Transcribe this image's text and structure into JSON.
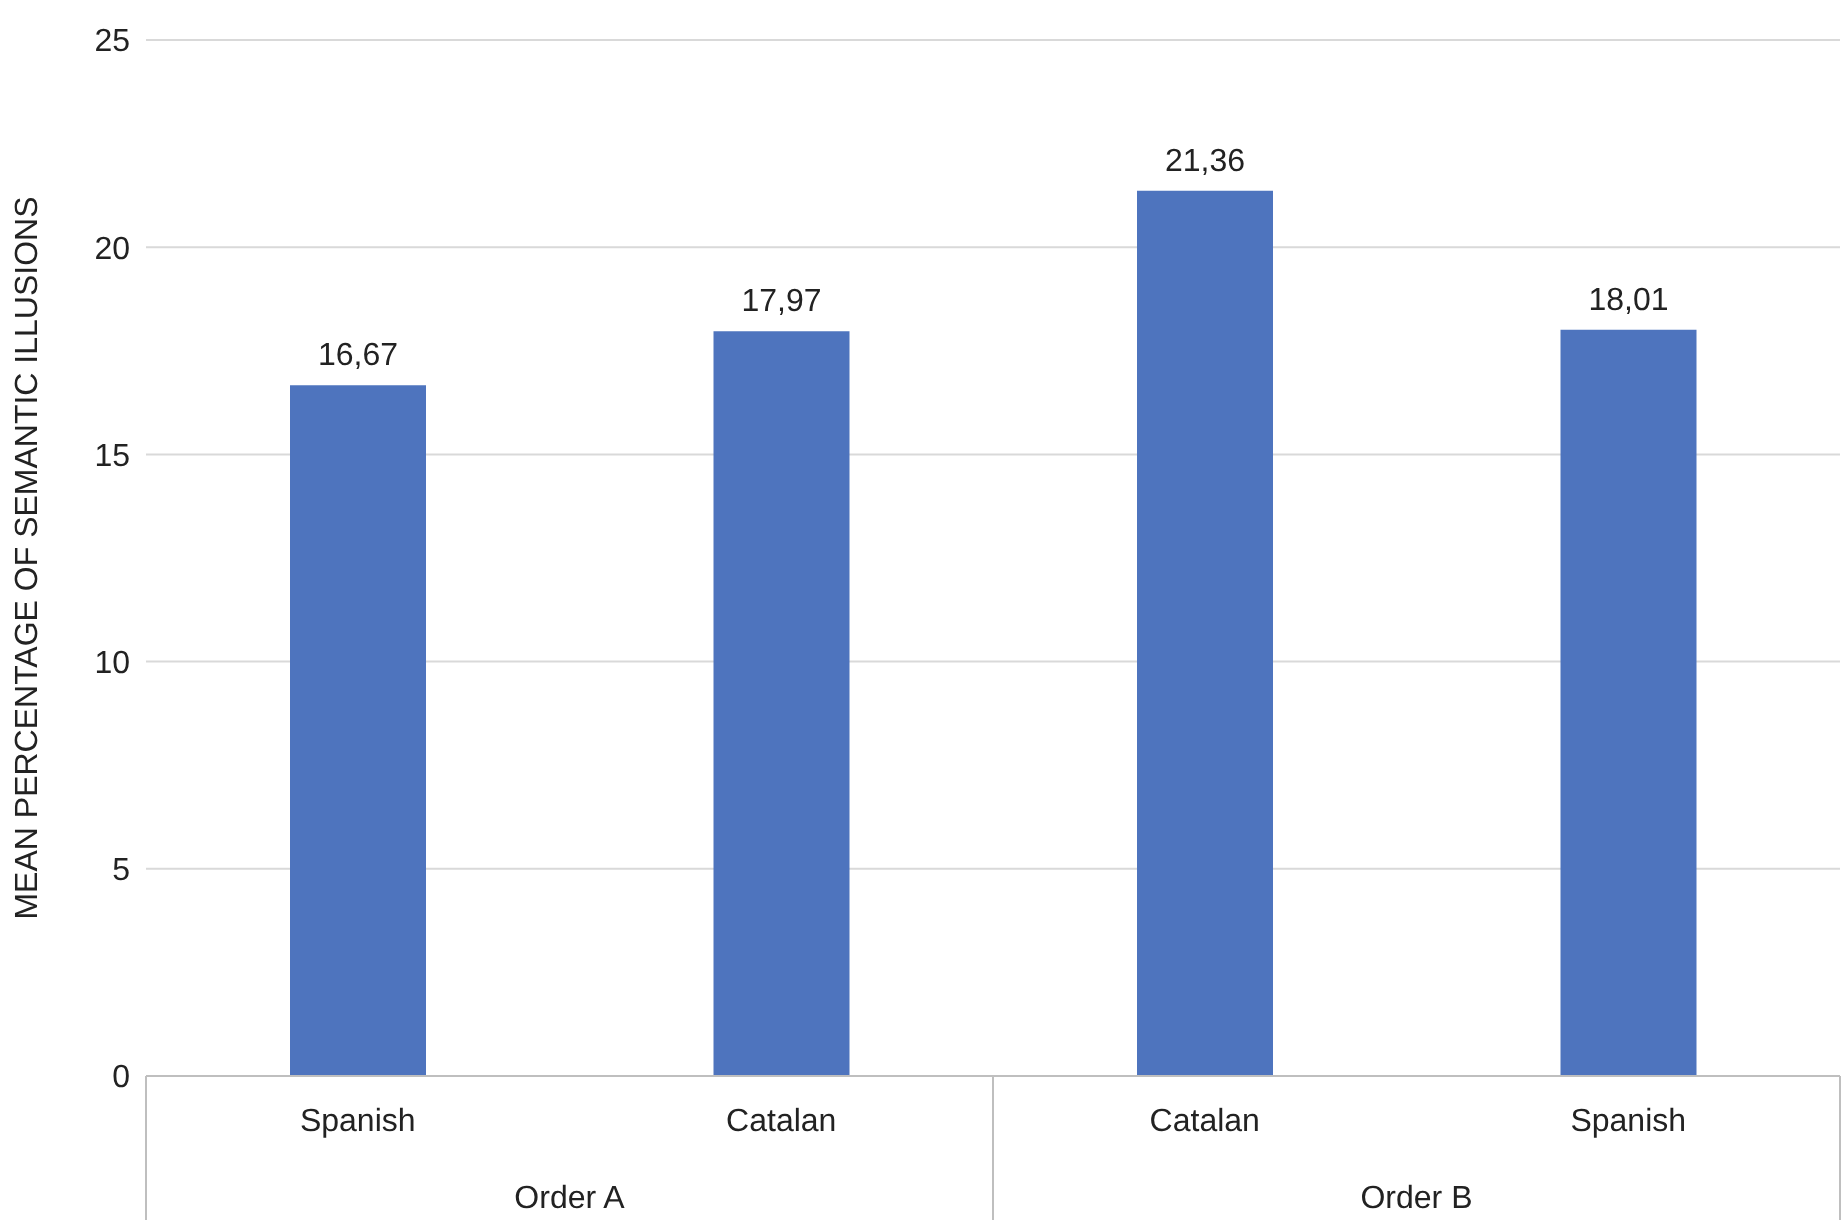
{
  "chart_data": {
    "type": "bar",
    "ylabel": "MEAN PERCENTAGE OF SEMANTIC ILLUSIONS",
    "categories": [
      "Spanish",
      "Catalan",
      "Catalan",
      "Spanish"
    ],
    "values": [
      16.67,
      17.97,
      21.36,
      18.01
    ],
    "value_labels": [
      "16,67",
      "17,97",
      "21,36",
      "18,01"
    ],
    "color": "#4e74be",
    "ylim": [
      0,
      25
    ],
    "yticks": [
      0,
      5,
      10,
      15,
      20,
      25
    ],
    "grid": "y",
    "annotations": [
      "Order A",
      "Order B"
    ]
  }
}
